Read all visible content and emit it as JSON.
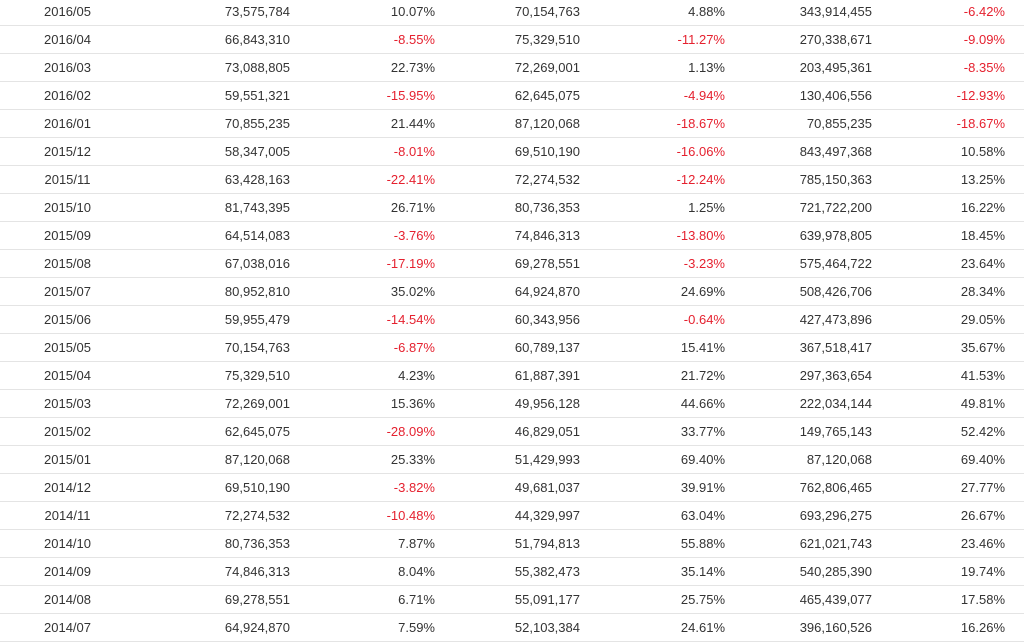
{
  "colors": {
    "text": "#333333",
    "negative": "#e5212f",
    "divider": "#e4e4e4"
  },
  "rows": [
    {
      "month": "2016/05",
      "revenue": "73,575,784",
      "mom": "10.07%",
      "prev_year": "70,154,763",
      "yoy": "4.88%",
      "cumulative": "343,914,455",
      "cum_yoy": "-6.42%"
    },
    {
      "month": "2016/04",
      "revenue": "66,843,310",
      "mom": "-8.55%",
      "prev_year": "75,329,510",
      "yoy": "-11.27%",
      "cumulative": "270,338,671",
      "cum_yoy": "-9.09%"
    },
    {
      "month": "2016/03",
      "revenue": "73,088,805",
      "mom": "22.73%",
      "prev_year": "72,269,001",
      "yoy": "1.13%",
      "cumulative": "203,495,361",
      "cum_yoy": "-8.35%"
    },
    {
      "month": "2016/02",
      "revenue": "59,551,321",
      "mom": "-15.95%",
      "prev_year": "62,645,075",
      "yoy": "-4.94%",
      "cumulative": "130,406,556",
      "cum_yoy": "-12.93%"
    },
    {
      "month": "2016/01",
      "revenue": "70,855,235",
      "mom": "21.44%",
      "prev_year": "87,120,068",
      "yoy": "-18.67%",
      "cumulative": "70,855,235",
      "cum_yoy": "-18.67%"
    },
    {
      "month": "2015/12",
      "revenue": "58,347,005",
      "mom": "-8.01%",
      "prev_year": "69,510,190",
      "yoy": "-16.06%",
      "cumulative": "843,497,368",
      "cum_yoy": "10.58%"
    },
    {
      "month": "2015/11",
      "revenue": "63,428,163",
      "mom": "-22.41%",
      "prev_year": "72,274,532",
      "yoy": "-12.24%",
      "cumulative": "785,150,363",
      "cum_yoy": "13.25%"
    },
    {
      "month": "2015/10",
      "revenue": "81,743,395",
      "mom": "26.71%",
      "prev_year": "80,736,353",
      "yoy": "1.25%",
      "cumulative": "721,722,200",
      "cum_yoy": "16.22%"
    },
    {
      "month": "2015/09",
      "revenue": "64,514,083",
      "mom": "-3.76%",
      "prev_year": "74,846,313",
      "yoy": "-13.80%",
      "cumulative": "639,978,805",
      "cum_yoy": "18.45%"
    },
    {
      "month": "2015/08",
      "revenue": "67,038,016",
      "mom": "-17.19%",
      "prev_year": "69,278,551",
      "yoy": "-3.23%",
      "cumulative": "575,464,722",
      "cum_yoy": "23.64%"
    },
    {
      "month": "2015/07",
      "revenue": "80,952,810",
      "mom": "35.02%",
      "prev_year": "64,924,870",
      "yoy": "24.69%",
      "cumulative": "508,426,706",
      "cum_yoy": "28.34%"
    },
    {
      "month": "2015/06",
      "revenue": "59,955,479",
      "mom": "-14.54%",
      "prev_year": "60,343,956",
      "yoy": "-0.64%",
      "cumulative": "427,473,896",
      "cum_yoy": "29.05%"
    },
    {
      "month": "2015/05",
      "revenue": "70,154,763",
      "mom": "-6.87%",
      "prev_year": "60,789,137",
      "yoy": "15.41%",
      "cumulative": "367,518,417",
      "cum_yoy": "35.67%"
    },
    {
      "month": "2015/04",
      "revenue": "75,329,510",
      "mom": "4.23%",
      "prev_year": "61,887,391",
      "yoy": "21.72%",
      "cumulative": "297,363,654",
      "cum_yoy": "41.53%"
    },
    {
      "month": "2015/03",
      "revenue": "72,269,001",
      "mom": "15.36%",
      "prev_year": "49,956,128",
      "yoy": "44.66%",
      "cumulative": "222,034,144",
      "cum_yoy": "49.81%"
    },
    {
      "month": "2015/02",
      "revenue": "62,645,075",
      "mom": "-28.09%",
      "prev_year": "46,829,051",
      "yoy": "33.77%",
      "cumulative": "149,765,143",
      "cum_yoy": "52.42%"
    },
    {
      "month": "2015/01",
      "revenue": "87,120,068",
      "mom": "25.33%",
      "prev_year": "51,429,993",
      "yoy": "69.40%",
      "cumulative": "87,120,068",
      "cum_yoy": "69.40%"
    },
    {
      "month": "2014/12",
      "revenue": "69,510,190",
      "mom": "-3.82%",
      "prev_year": "49,681,037",
      "yoy": "39.91%",
      "cumulative": "762,806,465",
      "cum_yoy": "27.77%"
    },
    {
      "month": "2014/11",
      "revenue": "72,274,532",
      "mom": "-10.48%",
      "prev_year": "44,329,997",
      "yoy": "63.04%",
      "cumulative": "693,296,275",
      "cum_yoy": "26.67%"
    },
    {
      "month": "2014/10",
      "revenue": "80,736,353",
      "mom": "7.87%",
      "prev_year": "51,794,813",
      "yoy": "55.88%",
      "cumulative": "621,021,743",
      "cum_yoy": "23.46%"
    },
    {
      "month": "2014/09",
      "revenue": "74,846,313",
      "mom": "8.04%",
      "prev_year": "55,382,473",
      "yoy": "35.14%",
      "cumulative": "540,285,390",
      "cum_yoy": "19.74%"
    },
    {
      "month": "2014/08",
      "revenue": "69,278,551",
      "mom": "6.71%",
      "prev_year": "55,091,177",
      "yoy": "25.75%",
      "cumulative": "465,439,077",
      "cum_yoy": "17.58%"
    },
    {
      "month": "2014/07",
      "revenue": "64,924,870",
      "mom": "7.59%",
      "prev_year": "52,103,384",
      "yoy": "24.61%",
      "cumulative": "396,160,526",
      "cum_yoy": "16.26%"
    }
  ]
}
